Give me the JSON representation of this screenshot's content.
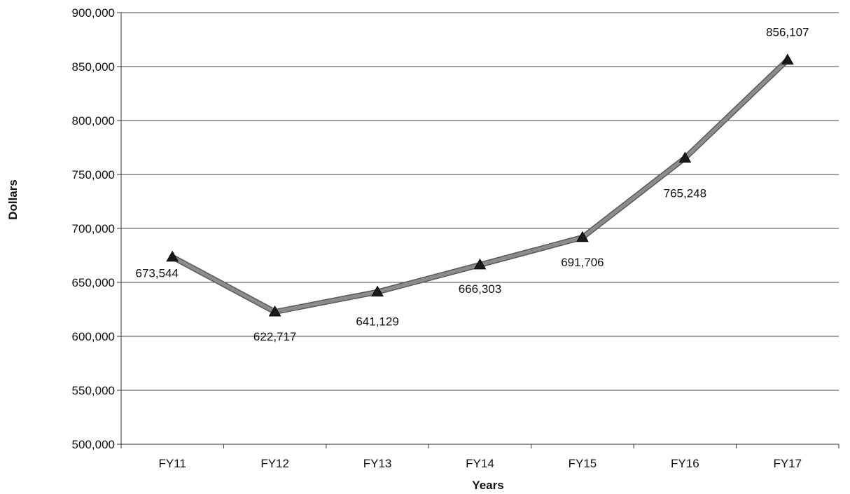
{
  "chart_data": {
    "type": "line",
    "title": "",
    "xlabel": "Years",
    "ylabel": "Dollars",
    "categories": [
      "FY11",
      "FY12",
      "FY13",
      "FY14",
      "FY15",
      "FY16",
      "FY17"
    ],
    "values": [
      673544,
      622717,
      641129,
      666303,
      691706,
      765248,
      856107
    ],
    "data_labels": [
      "673,544",
      "622,717",
      "641,129",
      "666,303",
      "691,706",
      "765,248",
      "856,107"
    ],
    "ylim": [
      500000,
      900000
    ],
    "yticks": [
      "500,000",
      "550,000",
      "600,000",
      "650,000",
      "700,000",
      "750,000",
      "800,000",
      "850,000",
      "900,000"
    ],
    "grid": "horizontal",
    "legend": "none",
    "marker": "triangle",
    "colors": {
      "line": "#8c8c8c",
      "line_edge": "#5a5a5a",
      "marker": "#1a1a1a",
      "grid": "#444444"
    }
  }
}
